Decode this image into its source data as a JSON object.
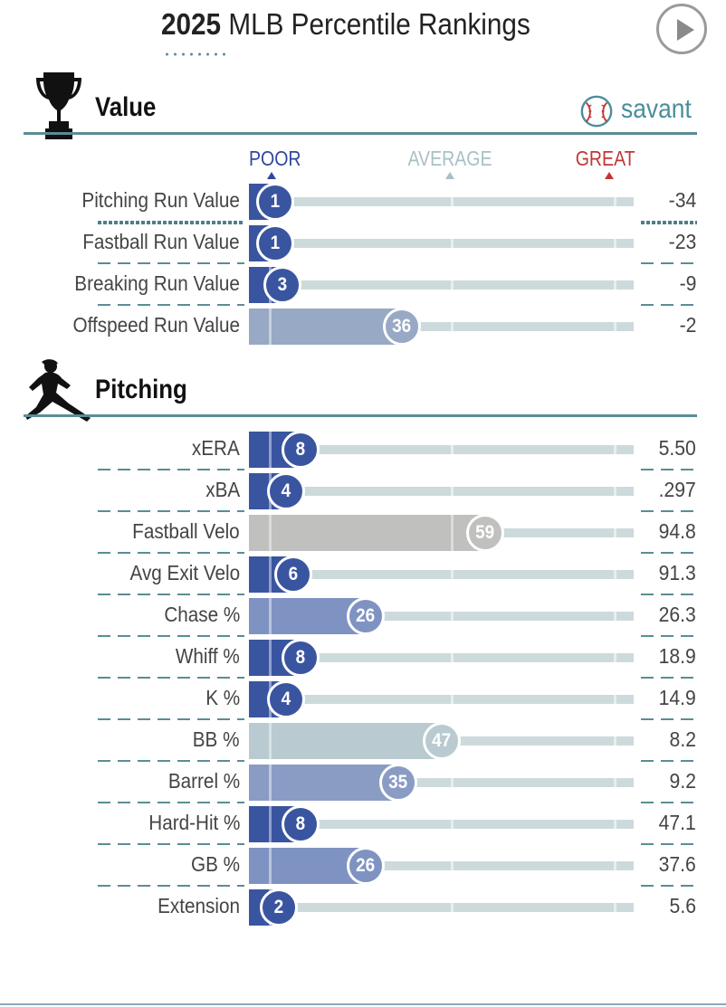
{
  "header": {
    "title_year": "2025",
    "title_rest": "MLB Percentile Rankings",
    "play_label": "play-button"
  },
  "brand": {
    "name": "savant"
  },
  "colors": {
    "poor": "#31479e",
    "average": "#a8c0c5",
    "great": "#c33535",
    "rule": "#5a8d95"
  },
  "scale": {
    "poor": "POOR",
    "average": "AVERAGE",
    "great": "GREAT"
  },
  "sections": [
    {
      "title": "Value",
      "icon": "trophy-icon",
      "rows": [
        {
          "label": "Pitching Run Value",
          "percentile": 1,
          "value": "-34",
          "color": "#3a55a0"
        },
        {
          "label": "Fastball Run Value",
          "percentile": 1,
          "value": "-23",
          "color": "#3a55a0"
        },
        {
          "label": "Breaking Run Value",
          "percentile": 3,
          "value": "-9",
          "color": "#3a55a0"
        },
        {
          "label": "Offspeed Run Value",
          "percentile": 36,
          "value": "-2",
          "color": "#97a9c4"
        }
      ]
    },
    {
      "title": "Pitching",
      "icon": "pitcher-icon",
      "rows": [
        {
          "label": "xERA",
          "percentile": 8,
          "value": "5.50",
          "color": "#3a55a0"
        },
        {
          "label": "xBA",
          "percentile": 4,
          "value": ".297",
          "color": "#3a55a0"
        },
        {
          "label": "Fastball Velo",
          "percentile": 59,
          "value": "94.8",
          "color": "#c0c0bf"
        },
        {
          "label": "Avg Exit Velo",
          "percentile": 6,
          "value": "91.3",
          "color": "#3a55a0"
        },
        {
          "label": "Chase %",
          "percentile": 26,
          "value": "26.3",
          "color": "#7f93c2"
        },
        {
          "label": "Whiff %",
          "percentile": 8,
          "value": "18.9",
          "color": "#3a55a0"
        },
        {
          "label": "K %",
          "percentile": 4,
          "value": "14.9",
          "color": "#3a55a0"
        },
        {
          "label": "BB %",
          "percentile": 47,
          "value": "8.2",
          "color": "#b9cbd0"
        },
        {
          "label": "Barrel %",
          "percentile": 35,
          "value": "9.2",
          "color": "#8a9cc4"
        },
        {
          "label": "Hard-Hit %",
          "percentile": 8,
          "value": "47.1",
          "color": "#3a55a0"
        },
        {
          "label": "GB %",
          "percentile": 26,
          "value": "37.6",
          "color": "#7f93c2"
        },
        {
          "label": "Extension",
          "percentile": 2,
          "value": "5.6",
          "color": "#3a55a0"
        }
      ]
    }
  ]
}
